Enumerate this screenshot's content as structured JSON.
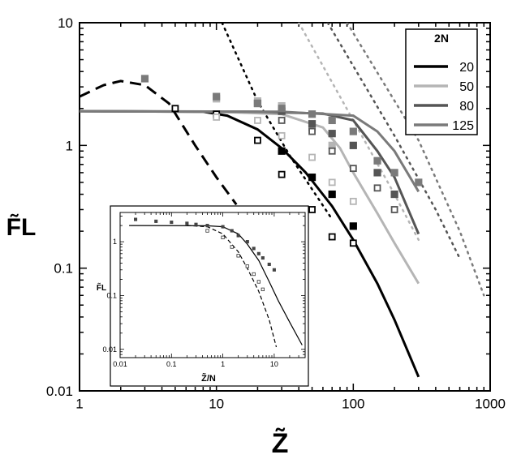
{
  "chart_data": [
    {
      "type": "scatter",
      "scale": "log-log",
      "title": "",
      "xlabel": "Z̃",
      "ylabel": "F̃L",
      "xlim": [
        1,
        1000
      ],
      "ylim": [
        0.01,
        10
      ],
      "xticks": [
        1,
        10,
        100,
        1000
      ],
      "xtick_labels": [
        "1",
        "10",
        "100",
        "1000"
      ],
      "yticks": [
        0.01,
        0.1,
        1,
        10
      ],
      "ytick_labels": [
        "0.01",
        "0.1",
        "1",
        "10"
      ],
      "legend_title": "2N",
      "legend_position": "top-right",
      "series": [
        {
          "name": "20",
          "color": "#000000",
          "curve": [
            [
              1,
              1.9
            ],
            [
              8,
              1.88
            ],
            [
              12,
              1.75
            ],
            [
              20,
              1.35
            ],
            [
              30,
              0.95
            ],
            [
              45,
              0.6
            ],
            [
              70,
              0.32
            ],
            [
              100,
              0.17
            ],
            [
              150,
              0.075
            ],
            [
              200,
              0.038
            ],
            [
              300,
              0.013
            ]
          ],
          "asymptote": [
            [
              11,
              10
            ],
            [
              20,
              2.3
            ],
            [
              35,
              0.8
            ],
            [
              70,
              0.25
            ]
          ],
          "open_markers": [
            [
              5,
              2.0
            ],
            [
              10,
              1.8
            ],
            [
              20,
              1.1
            ],
            [
              30,
              0.58
            ],
            [
              50,
              0.3
            ],
            [
              70,
              0.18
            ],
            [
              100,
              0.16
            ]
          ],
          "filled_markers": [
            [
              30,
              0.9
            ],
            [
              50,
              0.55
            ],
            [
              70,
              0.4
            ],
            [
              100,
              0.22
            ]
          ]
        },
        {
          "name": "50",
          "color": "#b5b5b5",
          "curve": [
            [
              1,
              1.9
            ],
            [
              10,
              1.88
            ],
            [
              30,
              1.8
            ],
            [
              60,
              1.4
            ],
            [
              80,
              0.95
            ],
            [
              100,
              0.6
            ],
            [
              150,
              0.28
            ],
            [
              200,
              0.16
            ],
            [
              300,
              0.075
            ]
          ],
          "asymptote": [
            [
              40,
              10
            ],
            [
              100,
              1.6
            ],
            [
              200,
              0.4
            ],
            [
              300,
              0.17
            ]
          ],
          "open_markers": [
            [
              10,
              1.7
            ],
            [
              20,
              1.6
            ],
            [
              30,
              1.2
            ],
            [
              50,
              0.8
            ],
            [
              70,
              0.5
            ],
            [
              100,
              0.35
            ]
          ],
          "filled_markers": [
            [
              10,
              2.4
            ],
            [
              20,
              2.3
            ],
            [
              30,
              2.1
            ],
            [
              50,
              1.4
            ],
            [
              70,
              1.0
            ]
          ]
        },
        {
          "name": "80",
          "color": "#555555",
          "curve": [
            [
              1,
              1.9
            ],
            [
              20,
              1.88
            ],
            [
              60,
              1.82
            ],
            [
              100,
              1.6
            ],
            [
              150,
              0.9
            ],
            [
              200,
              0.55
            ],
            [
              300,
              0.19
            ]
          ],
          "asymptote": [
            [
              65,
              10
            ],
            [
              200,
              1.2
            ],
            [
              400,
              0.3
            ],
            [
              600,
              0.12
            ]
          ],
          "open_markers": [
            [
              30,
              1.6
            ],
            [
              50,
              1.3
            ],
            [
              70,
              0.9
            ],
            [
              100,
              0.65
            ],
            [
              150,
              0.45
            ],
            [
              200,
              0.3
            ]
          ],
          "filled_markers": [
            [
              20,
              2.2
            ],
            [
              30,
              1.9
            ],
            [
              50,
              1.5
            ],
            [
              70,
              1.25
            ],
            [
              100,
              1.0
            ],
            [
              150,
              0.6
            ],
            [
              200,
              0.4
            ]
          ]
        },
        {
          "name": "125",
          "color": "#7a7a7a",
          "curve": [
            [
              1,
              1.9
            ],
            [
              30,
              1.88
            ],
            [
              100,
              1.75
            ],
            [
              150,
              1.3
            ],
            [
              200,
              0.9
            ],
            [
              300,
              0.42
            ]
          ],
          "asymptote": [
            [
              90,
              10
            ],
            [
              300,
              1.1
            ],
            [
              600,
              0.2
            ],
            [
              900,
              0.06
            ]
          ],
          "open_markers": [],
          "filled_markers": [
            [
              3,
              3.5
            ],
            [
              10,
              2.5
            ],
            [
              20,
              2.2
            ],
            [
              30,
              2.0
            ],
            [
              50,
              1.8
            ],
            [
              70,
              1.6
            ],
            [
              100,
              1.3
            ],
            [
              150,
              0.75
            ],
            [
              200,
              0.6
            ],
            [
              300,
              0.5
            ]
          ]
        }
      ],
      "extra_curve": {
        "name": "dashed",
        "style": "dashed",
        "color": "#000000",
        "points": [
          [
            1,
            2.5
          ],
          [
            1.5,
            3.1
          ],
          [
            2,
            3.35
          ],
          [
            3,
            3.1
          ],
          [
            4.5,
            2.2
          ],
          [
            7,
            1.0
          ],
          [
            10,
            0.55
          ],
          [
            14,
            0.33
          ]
        ]
      }
    },
    {
      "type": "scatter",
      "scale": "log-log",
      "role": "inset",
      "xlabel": "Z̃/N",
      "ylabel": "F̃L",
      "xlim": [
        0.01,
        40
      ],
      "ylim": [
        0.007,
        3.5
      ],
      "xticks": [
        0.01,
        0.1,
        1,
        10
      ],
      "xtick_labels": [
        "0.01",
        "0.1",
        "1",
        "10"
      ],
      "yticks": [
        0.01,
        0.1,
        1
      ],
      "ytick_labels": [
        "0.01",
        "0.1",
        "1"
      ],
      "solid_curve": [
        [
          0.015,
          2.0
        ],
        [
          0.5,
          1.98
        ],
        [
          1,
          1.9
        ],
        [
          2,
          1.4
        ],
        [
          3,
          0.9
        ],
        [
          5,
          0.45
        ],
        [
          8,
          0.18
        ],
        [
          12,
          0.08
        ],
        [
          20,
          0.032
        ],
        [
          35,
          0.012
        ]
      ],
      "dashed_curve": [
        [
          0.2,
          2.0
        ],
        [
          0.5,
          1.9
        ],
        [
          1,
          1.4
        ],
        [
          2,
          0.65
        ],
        [
          3,
          0.32
        ],
        [
          5,
          0.12
        ],
        [
          8,
          0.035
        ],
        [
          11,
          0.011
        ]
      ],
      "open_markers": [
        [
          0.5,
          1.6
        ],
        [
          1,
          1.2
        ],
        [
          1.5,
          0.8
        ],
        [
          2,
          0.55
        ],
        [
          3,
          0.35
        ],
        [
          4,
          0.25
        ],
        [
          5,
          0.18
        ],
        [
          6,
          0.13
        ]
      ],
      "filled_markers": [
        [
          0.02,
          2.6
        ],
        [
          0.05,
          2.4
        ],
        [
          0.1,
          2.3
        ],
        [
          0.2,
          2.2
        ],
        [
          0.3,
          2.1
        ],
        [
          0.5,
          2.0
        ],
        [
          1,
          1.9
        ],
        [
          1.5,
          1.6
        ],
        [
          2,
          1.3
        ],
        [
          3,
          1.0
        ],
        [
          4,
          0.75
        ],
        [
          5,
          0.6
        ],
        [
          6,
          0.5
        ],
        [
          8,
          0.38
        ],
        [
          10,
          0.3
        ]
      ]
    }
  ]
}
